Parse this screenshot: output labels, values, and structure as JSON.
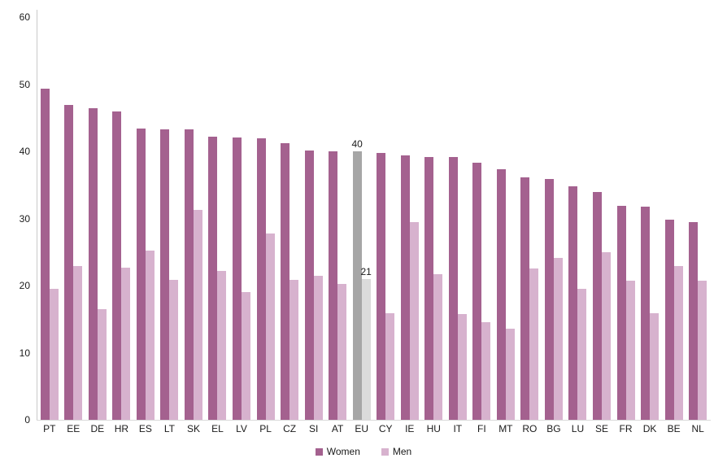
{
  "chart_data": {
    "type": "bar",
    "title": "",
    "xlabel": "",
    "ylabel": "",
    "ylim": [
      0,
      60
    ],
    "yticks": [
      0,
      10,
      20,
      30,
      40,
      50,
      60
    ],
    "grid": false,
    "legend_position": "bottom-center",
    "categories": [
      "PT",
      "EE",
      "DE",
      "HR",
      "ES",
      "LT",
      "SK",
      "EL",
      "LV",
      "PL",
      "CZ",
      "SI",
      "AT",
      "EU",
      "CY",
      "IE",
      "HU",
      "IT",
      "FI",
      "MT",
      "RO",
      "BG",
      "LU",
      "SE",
      "FR",
      "DK",
      "BE",
      "NL"
    ],
    "series": [
      {
        "name": "Women",
        "values": [
          49.3,
          46.9,
          46.4,
          45.9,
          43.4,
          43.3,
          43.3,
          42.2,
          42.1,
          41.9,
          41.2,
          40.1,
          40,
          40,
          39.7,
          39.4,
          39.2,
          39.1,
          38.3,
          37.3,
          36.1,
          35.9,
          34.8,
          33.9,
          31.9,
          31.8,
          29.8,
          29.5
        ]
      },
      {
        "name": "Men",
        "values": [
          19.5,
          22.9,
          16.5,
          22.7,
          25.2,
          20.8,
          31.3,
          22.2,
          19.0,
          27.7,
          20.9,
          21.5,
          20.2,
          21,
          15.9,
          29.5,
          21.7,
          15.8,
          14.5,
          13.6,
          22.5,
          24.1,
          19.5,
          25.0,
          20.7,
          15.9,
          22.9,
          20.7
        ]
      }
    ],
    "highlight": {
      "category": "EU",
      "data_labels": {
        "Women": "40",
        "Men": "21"
      }
    },
    "colors": {
      "women": "#a4618f",
      "men": "#d7b2ce",
      "eu_women": "#a6a6a6",
      "eu_men": "#dbdbdb",
      "axis": "#c9c9c9",
      "text": "#1a1a1a"
    }
  },
  "legend": {
    "women_label": "Women",
    "men_label": "Men"
  }
}
